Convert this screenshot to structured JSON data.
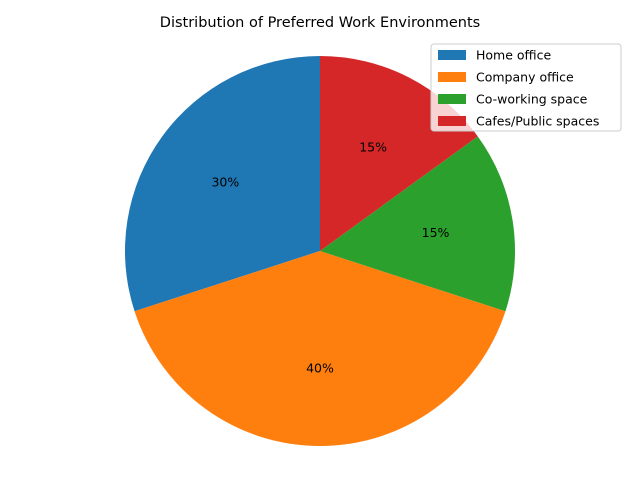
{
  "chart_data": {
    "type": "pie",
    "title": "Distribution of Preferred Work Environments",
    "start_angle_deg": 90,
    "direction": "counterclockwise",
    "legend_position": "top-right",
    "slices": [
      {
        "label": "Home office",
        "value": 30,
        "pct_label": "30%",
        "color": "#1f77b4"
      },
      {
        "label": "Company office",
        "value": 40,
        "pct_label": "40%",
        "color": "#ff7f0e"
      },
      {
        "label": "Co-working space",
        "value": 15,
        "pct_label": "15%",
        "color": "#2ca02c"
      },
      {
        "label": "Cafes/Public spaces",
        "value": 15,
        "pct_label": "15%",
        "color": "#d62728"
      }
    ]
  }
}
